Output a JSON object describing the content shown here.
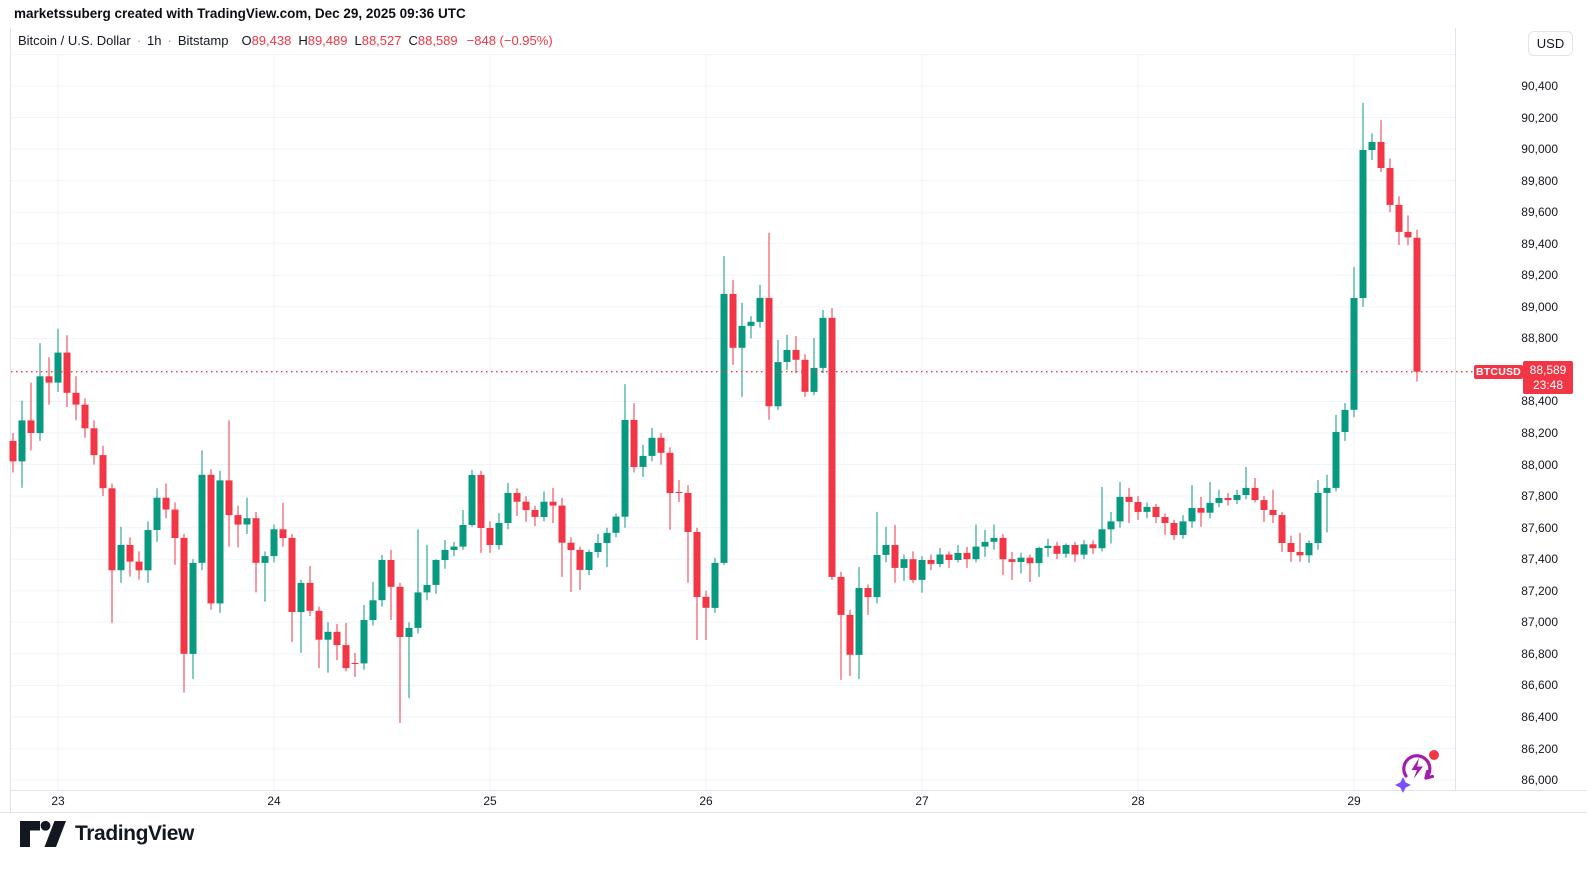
{
  "attribution": "marketssuberg created with TradingView.com, Dec 29, 2025 09:36 UTC",
  "legend": {
    "symbol": "Bitcoin / U.S. Dollar",
    "sep": "·",
    "interval": "1h",
    "exchange": "Bitstamp",
    "ohlc": [
      {
        "label": "O",
        "value": "89,438"
      },
      {
        "label": "H",
        "value": "89,489"
      },
      {
        "label": "L",
        "value": "88,527"
      },
      {
        "label": "C",
        "value": "88,589"
      }
    ],
    "change": "−848 (−0.95%)"
  },
  "currency_button": "USD",
  "last_price": {
    "symbol_badge": "BTCUSD",
    "price": "88,589",
    "countdown": "23:48"
  },
  "watermark": "TradingView",
  "price_axis_labels": [
    "90,400",
    "90,200",
    "90,000",
    "89,800",
    "89,600",
    "89,400",
    "89,200",
    "89,000",
    "88,800",
    "88,600",
    "88,400",
    "88,200",
    "88,000",
    "87,800",
    "87,600",
    "87,400",
    "87,200",
    "87,000",
    "86,800",
    "86,600",
    "86,400",
    "86,200",
    "86,000"
  ],
  "time_axis_labels": [
    "23",
    "24",
    "25",
    "26",
    "27",
    "28",
    "29"
  ],
  "chart_data": {
    "type": "candlestick",
    "title": "Bitcoin / U.S. Dollar",
    "symbol": "BTCUSD",
    "interval": "1h",
    "exchange": "Bitstamp",
    "up_color": "#089981",
    "down_color": "#F23645",
    "grid_color": "#f0f3fa",
    "price_axis_min": 86000,
    "price_axis_max": 90600,
    "grid_step": 200,
    "last_close": 88589,
    "last_candle_ohlc": [
      89438,
      89489,
      88527,
      88589
    ],
    "day_labels": [
      "23",
      "24",
      "25",
      "26",
      "27",
      "28",
      "29"
    ],
    "day_start_indices": [
      5,
      29,
      53,
      77,
      101,
      125,
      149
    ],
    "candles_format": "[open, high, low, close] hourly",
    "candles": [
      [
        88150,
        88200,
        87950,
        88020
      ],
      [
        88020,
        88405,
        87853,
        88280
      ],
      [
        88280,
        88520,
        88090,
        88200
      ],
      [
        88200,
        88770,
        88150,
        88560
      ],
      [
        88560,
        88680,
        88380,
        88520
      ],
      [
        88520,
        88860,
        88460,
        88710
      ],
      [
        88710,
        88820,
        88365,
        88455
      ],
      [
        88455,
        88560,
        88280,
        88380
      ],
      [
        88380,
        88420,
        88170,
        88230
      ],
      [
        88230,
        88280,
        88000,
        88060
      ],
      [
        88060,
        88120,
        87800,
        87850
      ],
      [
        87850,
        87880,
        86995,
        87330
      ],
      [
        87330,
        87605,
        87250,
        87490
      ],
      [
        87490,
        87540,
        87290,
        87385
      ],
      [
        87385,
        87450,
        87270,
        87330
      ],
      [
        87330,
        87640,
        87250,
        87585
      ],
      [
        87585,
        87850,
        87510,
        87790
      ],
      [
        87790,
        87880,
        87660,
        87715
      ],
      [
        87715,
        87760,
        87365,
        87535
      ],
      [
        87535,
        87560,
        86555,
        86800
      ],
      [
        86800,
        87400,
        86640,
        87377
      ],
      [
        87377,
        88090,
        87330,
        87935
      ],
      [
        87935,
        87970,
        87080,
        87120
      ],
      [
        87120,
        87960,
        87060,
        87900
      ],
      [
        87900,
        88280,
        87480,
        87680
      ],
      [
        87680,
        87740,
        87475,
        87620
      ],
      [
        87620,
        87790,
        87560,
        87660
      ],
      [
        87660,
        87700,
        87190,
        87377
      ],
      [
        87377,
        87450,
        87130,
        87420
      ],
      [
        87420,
        87620,
        87380,
        87590
      ],
      [
        87590,
        87757,
        87480,
        87535
      ],
      [
        87535,
        87560,
        86875,
        87065
      ],
      [
        87065,
        87270,
        86806,
        87250
      ],
      [
        87250,
        87358,
        87040,
        87073
      ],
      [
        87073,
        87100,
        86710,
        86890
      ],
      [
        86890,
        87000,
        86680,
        86940
      ],
      [
        86940,
        86990,
        86760,
        86856
      ],
      [
        86856,
        86996,
        86690,
        86710
      ],
      [
        86742,
        86806,
        86654,
        86740
      ],
      [
        86740,
        87110,
        86700,
        87015
      ],
      [
        87015,
        87256,
        86980,
        87140
      ],
      [
        87140,
        87427,
        87100,
        87395
      ],
      [
        87395,
        87459,
        87015,
        87225
      ],
      [
        87225,
        87250,
        86362,
        86907
      ],
      [
        86907,
        87000,
        86520,
        86965
      ],
      [
        86965,
        87590,
        86930,
        87190
      ],
      [
        87190,
        87491,
        87140,
        87237
      ],
      [
        87237,
        87400,
        87180,
        87395
      ],
      [
        87395,
        87522,
        87340,
        87459
      ],
      [
        87459,
        87510,
        87420,
        87480
      ],
      [
        87480,
        87712,
        87460,
        87617
      ],
      [
        87617,
        87966,
        87605,
        87934
      ],
      [
        87934,
        87960,
        87440,
        87598
      ],
      [
        87598,
        87640,
        87440,
        87490
      ],
      [
        87490,
        87693,
        87460,
        87630
      ],
      [
        87630,
        87883,
        87590,
        87820
      ],
      [
        87820,
        87850,
        87674,
        87765
      ],
      [
        87765,
        87800,
        87637,
        87712
      ],
      [
        87712,
        87740,
        87610,
        87668
      ],
      [
        87668,
        87830,
        87640,
        87765
      ],
      [
        87765,
        87852,
        87630,
        87740
      ],
      [
        87740,
        87790,
        87288,
        87505
      ],
      [
        87505,
        87540,
        87193,
        87459
      ],
      [
        87459,
        87480,
        87205,
        87332
      ],
      [
        87332,
        87460,
        87300,
        87446
      ],
      [
        87446,
        87560,
        87410,
        87503
      ],
      [
        87503,
        87600,
        87350,
        87567
      ],
      [
        87567,
        87690,
        87540,
        87670
      ],
      [
        87670,
        88510,
        87600,
        88283
      ],
      [
        88283,
        88390,
        87950,
        87985
      ],
      [
        87985,
        88125,
        87922,
        88055
      ],
      [
        88055,
        88232,
        88020,
        88170
      ],
      [
        88170,
        88200,
        88000,
        88075
      ],
      [
        88075,
        88110,
        87586,
        87820
      ],
      [
        87826,
        87902,
        87763,
        87820
      ],
      [
        87820,
        87870,
        87250,
        87573
      ],
      [
        87573,
        87600,
        86888,
        87161
      ],
      [
        87161,
        87200,
        86888,
        87092
      ],
      [
        87092,
        87409,
        87060,
        87377
      ],
      [
        87377,
        89322,
        87364,
        89082
      ],
      [
        89082,
        89171,
        88632,
        88740
      ],
      [
        88740,
        89025,
        88429,
        88879
      ],
      [
        88879,
        88940,
        88800,
        88905
      ],
      [
        88905,
        89139,
        88870,
        89057
      ],
      [
        89057,
        89470,
        88284,
        88370
      ],
      [
        88370,
        88790,
        88347,
        88650
      ],
      [
        88650,
        88822,
        88600,
        88727
      ],
      [
        88727,
        88815,
        88580,
        88664
      ],
      [
        88664,
        88700,
        88429,
        88461
      ],
      [
        88461,
        88803,
        88440,
        88613
      ],
      [
        88613,
        88980,
        88580,
        88930
      ],
      [
        88930,
        88993,
        87269,
        87288
      ],
      [
        87288,
        87320,
        86635,
        87047
      ],
      [
        87047,
        87080,
        86660,
        86794
      ],
      [
        86794,
        87351,
        86640,
        87218
      ],
      [
        87218,
        87240,
        87047,
        87160
      ],
      [
        87160,
        87700,
        87120,
        87427
      ],
      [
        87427,
        87605,
        87380,
        87490
      ],
      [
        87490,
        87617,
        87250,
        87345
      ],
      [
        87345,
        87430,
        87263,
        87400
      ],
      [
        87400,
        87450,
        87250,
        87269
      ],
      [
        87269,
        87420,
        87187,
        87395
      ],
      [
        87395,
        87430,
        87330,
        87370
      ],
      [
        87370,
        87471,
        87350,
        87430
      ],
      [
        87430,
        87450,
        87345,
        87395
      ],
      [
        87395,
        87490,
        87380,
        87440
      ],
      [
        87440,
        87478,
        87345,
        87400
      ],
      [
        87400,
        87620,
        87380,
        87480
      ],
      [
        87480,
        87586,
        87415,
        87510
      ],
      [
        87510,
        87620,
        87460,
        87535
      ],
      [
        87535,
        87560,
        87300,
        87400
      ],
      [
        87400,
        87446,
        87269,
        87383
      ],
      [
        87383,
        87440,
        87310,
        87410
      ],
      [
        87410,
        87430,
        87256,
        87375
      ],
      [
        87375,
        87480,
        87288,
        87471
      ],
      [
        87471,
        87529,
        87415,
        87485
      ],
      [
        87485,
        87510,
        87400,
        87434
      ],
      [
        87434,
        87500,
        87410,
        87490
      ],
      [
        87490,
        87510,
        87383,
        87430
      ],
      [
        87430,
        87520,
        87400,
        87495
      ],
      [
        87495,
        87520,
        87434,
        87470
      ],
      [
        87470,
        87858,
        87450,
        87590
      ],
      [
        87590,
        87700,
        87500,
        87640
      ],
      [
        87640,
        87890,
        87600,
        87795
      ],
      [
        87795,
        87852,
        87630,
        87763
      ],
      [
        87763,
        87800,
        87649,
        87700
      ],
      [
        87700,
        87760,
        87660,
        87732
      ],
      [
        87732,
        87750,
        87630,
        87668
      ],
      [
        87668,
        87690,
        87554,
        87630
      ],
      [
        87630,
        87650,
        87522,
        87554
      ],
      [
        87554,
        87680,
        87530,
        87640
      ],
      [
        87640,
        87870,
        87600,
        87725
      ],
      [
        87725,
        87795,
        87605,
        87695
      ],
      [
        87695,
        87890,
        87660,
        87757
      ],
      [
        87757,
        87840,
        87730,
        87788
      ],
      [
        87788,
        87820,
        87740,
        87775
      ],
      [
        87775,
        87840,
        87750,
        87807
      ],
      [
        87807,
        87985,
        87780,
        87852
      ],
      [
        87852,
        87915,
        87760,
        87775
      ],
      [
        87775,
        87800,
        87637,
        87712
      ],
      [
        87712,
        87840,
        87630,
        87680
      ],
      [
        87680,
        87700,
        87446,
        87503
      ],
      [
        87503,
        87550,
        87383,
        87446
      ],
      [
        87446,
        87567,
        87383,
        87425
      ],
      [
        87425,
        87520,
        87377,
        87503
      ],
      [
        87503,
        87902,
        87460,
        87820
      ],
      [
        87820,
        87935,
        87570,
        87852
      ],
      [
        87852,
        88315,
        87830,
        88207
      ],
      [
        88207,
        88390,
        88150,
        88347
      ],
      [
        88347,
        89253,
        88300,
        89056
      ],
      [
        89056,
        90292,
        89000,
        89994
      ],
      [
        89994,
        90100,
        89930,
        90045
      ],
      [
        90045,
        90184,
        89855,
        89880
      ],
      [
        89880,
        89940,
        89600,
        89646
      ],
      [
        89646,
        89700,
        89392,
        89475
      ],
      [
        89475,
        89580,
        89390,
        89440
      ],
      [
        89438,
        89489,
        88527,
        88589
      ]
    ]
  }
}
